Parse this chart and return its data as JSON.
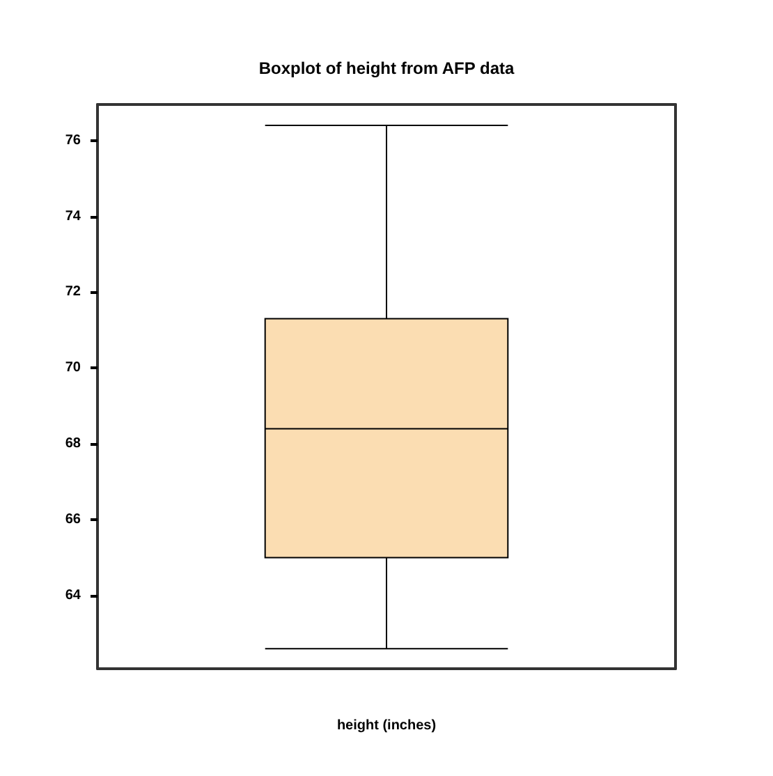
{
  "chart_data": {
    "type": "box",
    "title": "Boxplot of height from AFP data",
    "xlabel": "height (inches)",
    "categories": [
      null
    ],
    "series": [
      {
        "color": "#fbddb2",
        "boxes": [
          {
            "low": 62.6,
            "q1": 65.0,
            "median": 68.4,
            "q3": 71.3,
            "high": 76.4
          }
        ]
      }
    ],
    "ylim": [
      62.07,
      76.95
    ],
    "yticks": [
      64,
      66,
      68,
      70,
      72,
      74,
      76
    ],
    "grid": false,
    "tick_labels": "y"
  }
}
